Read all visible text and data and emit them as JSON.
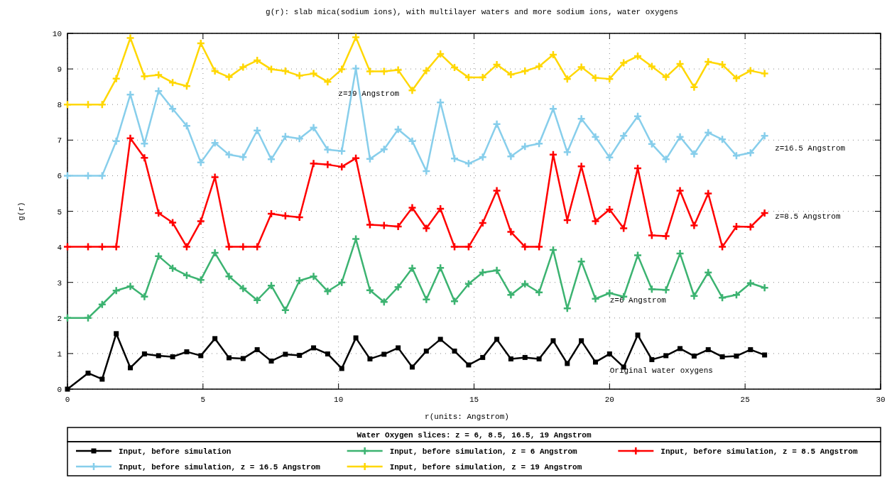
{
  "chart_data": {
    "type": "line",
    "title": "g(r): slab mica(sodium ions), with multilayer waters and more sodium ions, water oxygens",
    "xlabel": "r(units: Angstrom)",
    "ylabel": "g(r)",
    "legend_title": "Water Oxygen slices: z = 6, 8.5, 16.5, 19 Angstrom",
    "legend": "bottom",
    "grid": true,
    "line_style": "solid",
    "x": [
      0,
      0.76,
      1.28,
      1.8,
      2.32,
      2.84,
      3.36,
      3.88,
      4.4,
      4.92,
      5.44,
      5.96,
      6.48,
      7,
      7.52,
      8.04,
      8.56,
      9.08,
      9.6,
      10.12,
      10.64,
      11.16,
      11.68,
      12.2,
      12.72,
      13.24,
      13.76,
      14.28,
      14.8,
      15.32,
      15.84,
      16.36,
      16.88,
      17.4,
      17.92,
      18.44,
      18.96,
      19.48,
      20,
      20.52,
      21.04,
      21.56,
      22.08,
      22.6,
      23.12,
      23.64,
      24.16,
      24.68,
      25.2,
      25.72
    ],
    "xlim": [
      0,
      30
    ],
    "xticks": [
      0,
      5,
      10,
      15,
      20,
      25,
      30
    ],
    "ylim": [
      0,
      10
    ],
    "yticks": [
      0,
      1,
      2,
      3,
      4,
      5,
      6,
      7,
      8,
      9,
      10
    ],
    "series": [
      {
        "name": "Input, before simulation",
        "color": "#000000",
        "marker": "square",
        "values": [
          0,
          0.45,
          0.28,
          1.56,
          0.6,
          0.99,
          0.94,
          0.91,
          1.05,
          0.94,
          1.42,
          0.88,
          0.86,
          1.11,
          0.79,
          0.98,
          0.95,
          1.16,
          0.99,
          0.58,
          1.44,
          0.85,
          0.98,
          1.16,
          0.62,
          1.07,
          1.4,
          1.07,
          0.68,
          0.89,
          1.4,
          0.85,
          0.89,
          0.85,
          1.36,
          0.72,
          1.36,
          0.76,
          0.99,
          0.62,
          1.52,
          0.83,
          0.94,
          1.14,
          0.93,
          1.11,
          0.91,
          0.93,
          1.11,
          0.96
        ]
      },
      {
        "name": "Input, before simulation, z = 6 Angstrom",
        "color": "#3cb371",
        "marker": "cross",
        "values": [
          2,
          2,
          2.38,
          2.77,
          2.89,
          2.6,
          3.74,
          3.4,
          3.2,
          3.07,
          3.83,
          3.17,
          2.83,
          2.5,
          2.91,
          2.22,
          3.05,
          3.17,
          2.75,
          3,
          4.22,
          2.78,
          2.45,
          2.87,
          3.4,
          2.52,
          3.41,
          2.47,
          2.96,
          3.28,
          3.34,
          2.65,
          2.96,
          2.72,
          3.91,
          2.27,
          3.59,
          2.54,
          2.7,
          2.6,
          3.76,
          2.81,
          2.79,
          3.81,
          2.62,
          3.28,
          2.57,
          2.65,
          2.98,
          2.85
        ]
      },
      {
        "name": "Input, before simulation, z = 8.5 Angstrom",
        "color": "#ff0000",
        "marker": "cross",
        "values": [
          4,
          4,
          4,
          4,
          7.05,
          6.5,
          4.95,
          4.68,
          4,
          4.72,
          5.96,
          4,
          4,
          4,
          4.93,
          4.87,
          4.83,
          6.34,
          6.31,
          6.25,
          6.49,
          4.62,
          4.6,
          4.57,
          5.1,
          4.52,
          5.07,
          4,
          4,
          4.67,
          5.58,
          4.42,
          4,
          4,
          6.59,
          4.75,
          6.26,
          4.72,
          5.05,
          4.52,
          6.21,
          4.32,
          4.3,
          5.58,
          4.6,
          5.5,
          4,
          4.57,
          4.56,
          4.95
        ]
      },
      {
        "name": "Input, before simulation, z = 16.5 Angstrom",
        "color": "#87ceeb",
        "marker": "cross",
        "values": [
          6,
          6,
          6,
          6.97,
          8.28,
          6.9,
          8.38,
          7.88,
          7.4,
          6.37,
          6.92,
          6.59,
          6.52,
          7.27,
          6.46,
          7.1,
          7.04,
          7.35,
          6.73,
          6.69,
          9.01,
          6.47,
          6.74,
          7.3,
          6.97,
          6.13,
          8.06,
          6.48,
          6.34,
          6.52,
          7.45,
          6.54,
          6.82,
          6.9,
          7.88,
          6.66,
          7.6,
          7.09,
          6.51,
          7.12,
          7.67,
          6.89,
          6.46,
          7.09,
          6.61,
          7.21,
          7.02,
          6.56,
          6.64,
          7.12
        ]
      },
      {
        "name": "Input, before simulation, z = 19 Angstrom",
        "color": "#ffd700",
        "marker": "cross",
        "values": [
          8,
          8,
          8,
          8.73,
          9.87,
          8.79,
          8.83,
          8.62,
          8.52,
          9.72,
          8.94,
          8.77,
          9.05,
          9.24,
          8.99,
          8.94,
          8.81,
          8.87,
          8.64,
          8.99,
          9.89,
          8.93,
          8.93,
          8.97,
          8.4,
          8.95,
          9.42,
          9.04,
          8.76,
          8.76,
          9.12,
          8.84,
          8.94,
          9.07,
          9.4,
          8.72,
          9.05,
          8.75,
          8.72,
          9.17,
          9.36,
          9.07,
          8.77,
          9.14,
          8.49,
          9.2,
          9.12,
          8.74,
          8.95,
          8.87
        ]
      }
    ],
    "annotations": [
      "z=19 Angstrom",
      "z=16.5 Angstrom",
      "z=8.5 Angstrom",
      "z=6 Angstrom",
      "Original water oxygens"
    ]
  }
}
